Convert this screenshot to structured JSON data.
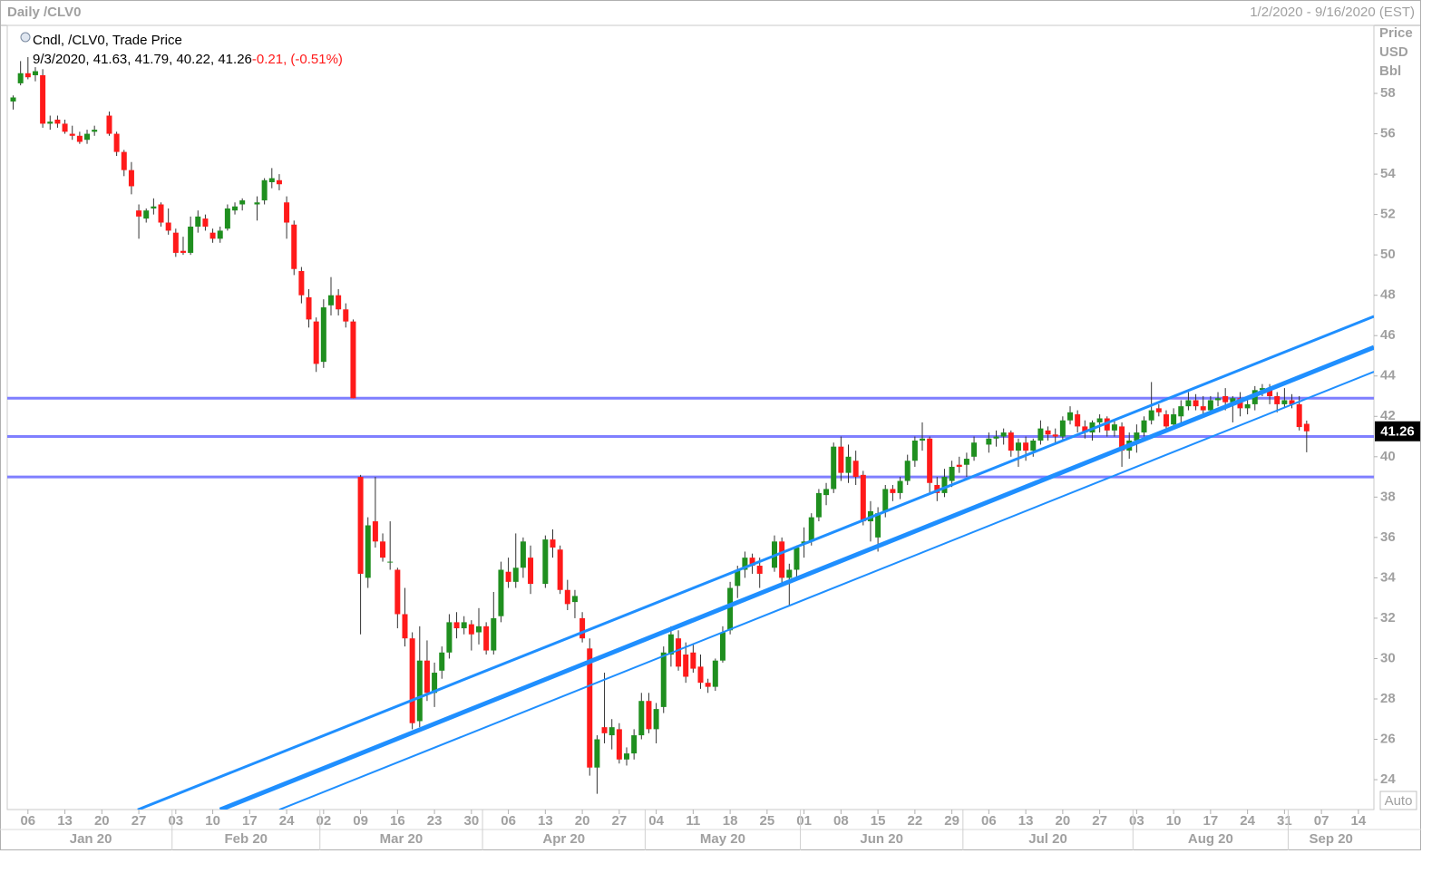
{
  "header": {
    "title": "Daily /CLV0",
    "range": "1/2/2020 - 9/16/2020 (EST)"
  },
  "legend": {
    "series": "Cndl, /CLV0, Trade Price",
    "values_line": "9/3/2020, 41.63, 41.79, 40.22, 41.26",
    "change": "-0.21, (-0.51%)"
  },
  "chart_data": {
    "type": "candlestick",
    "axis_units": [
      "Price",
      "USD",
      "Bbl"
    ],
    "auto_button": "Auto",
    "up_color": "#1f8f1f",
    "down_color": "#ff1a1a",
    "xlim": [
      -0.8,
      184.1
    ],
    "ylim": [
      22.52,
      61.37
    ],
    "yticks": [
      24,
      26,
      28,
      30,
      32,
      34,
      36,
      38,
      40,
      42,
      44,
      46,
      48,
      50,
      52,
      54,
      56,
      58
    ],
    "xticks": [
      {
        "value": 2,
        "label": "06"
      },
      {
        "value": 7,
        "label": "13"
      },
      {
        "value": 12,
        "label": "20"
      },
      {
        "value": 17,
        "label": "27"
      },
      {
        "value": 22,
        "label": "03"
      },
      {
        "value": 27,
        "label": "10"
      },
      {
        "value": 32,
        "label": "17"
      },
      {
        "value": 37,
        "label": "24"
      },
      {
        "value": 42,
        "label": "02"
      },
      {
        "value": 47,
        "label": "09"
      },
      {
        "value": 52,
        "label": "16"
      },
      {
        "value": 57,
        "label": "23"
      },
      {
        "value": 62,
        "label": "30"
      },
      {
        "value": 67,
        "label": "06"
      },
      {
        "value": 72,
        "label": "13"
      },
      {
        "value": 77,
        "label": "20"
      },
      {
        "value": 82,
        "label": "27"
      },
      {
        "value": 87,
        "label": "04"
      },
      {
        "value": 92,
        "label": "11"
      },
      {
        "value": 97,
        "label": "18"
      },
      {
        "value": 102,
        "label": "25"
      },
      {
        "value": 107,
        "label": "01"
      },
      {
        "value": 112,
        "label": "08"
      },
      {
        "value": 117,
        "label": "15"
      },
      {
        "value": 122,
        "label": "22"
      },
      {
        "value": 127,
        "label": "29"
      },
      {
        "value": 132,
        "label": "06"
      },
      {
        "value": 137,
        "label": "13"
      },
      {
        "value": 142,
        "label": "20"
      },
      {
        "value": 147,
        "label": "27"
      },
      {
        "value": 152,
        "label": "03"
      },
      {
        "value": 157,
        "label": "10"
      },
      {
        "value": 162,
        "label": "17"
      },
      {
        "value": 167,
        "label": "24"
      },
      {
        "value": 172,
        "label": "31"
      },
      {
        "value": 177,
        "label": "07"
      },
      {
        "value": 182,
        "label": "14"
      }
    ],
    "month_ticks": [
      {
        "value": -0.5,
        "label": "Jan 20"
      },
      {
        "value": 21.5,
        "label": "Feb 20"
      },
      {
        "value": 41.5,
        "label": "Mar 20"
      },
      {
        "value": 63.5,
        "label": "Apr 20"
      },
      {
        "value": 85.5,
        "label": "May 20"
      },
      {
        "value": 106.5,
        "label": "Jun 20"
      },
      {
        "value": 128.5,
        "label": "Jul 20"
      },
      {
        "value": 151.5,
        "label": "Aug 20"
      },
      {
        "value": 172.5,
        "label": "Sep 20"
      }
    ],
    "hlines": [
      42.9,
      41.0,
      39.0
    ],
    "hline_color": "#7f7fff",
    "trendlines": [
      {
        "points": [
          [
            16.85,
            22.51
          ],
          [
            184.1,
            46.95
          ]
        ],
        "width": 3,
        "color": "#1f8fff"
      },
      {
        "points": [
          [
            28.0,
            22.51
          ],
          [
            184.1,
            45.42
          ]
        ],
        "width": 5,
        "color": "#1f8fff"
      },
      {
        "points": [
          [
            36.0,
            22.51
          ],
          [
            184.1,
            44.21
          ]
        ],
        "width": 2,
        "color": "#1f8fff"
      }
    ],
    "candles": [
      [
        57.6,
        57.9,
        57.2,
        57.8
      ],
      [
        58.5,
        59.6,
        58.4,
        59.0
      ],
      [
        59.0,
        59.8,
        58.7,
        58.8
      ],
      [
        58.9,
        59.3,
        58.6,
        59.1
      ],
      [
        58.9,
        59.2,
        56.3,
        56.5
      ],
      [
        56.5,
        56.9,
        56.2,
        56.6
      ],
      [
        56.7,
        56.9,
        56.3,
        56.5
      ],
      [
        56.5,
        56.7,
        56.0,
        56.1
      ],
      [
        56.0,
        56.4,
        55.7,
        55.9
      ],
      [
        55.9,
        56.1,
        55.5,
        55.6
      ],
      [
        55.7,
        56.2,
        55.5,
        56.0
      ],
      [
        56.1,
        56.4,
        55.9,
        56.2
      ],
      null,
      [
        56.9,
        57.1,
        55.9,
        56.0
      ],
      [
        56.0,
        56.1,
        54.9,
        55.1
      ],
      [
        55.1,
        55.2,
        53.9,
        54.2
      ],
      [
        54.2,
        54.6,
        53.0,
        53.4
      ],
      [
        52.2,
        52.5,
        50.8,
        51.9
      ],
      [
        51.8,
        52.3,
        51.6,
        52.2
      ],
      [
        52.3,
        52.8,
        52.0,
        52.4
      ],
      [
        52.5,
        52.6,
        51.4,
        51.6
      ],
      [
        51.6,
        52.3,
        51.0,
        51.2
      ],
      [
        51.1,
        51.3,
        49.9,
        50.1
      ],
      [
        50.2,
        50.9,
        50.0,
        50.1
      ],
      [
        50.1,
        51.9,
        50.0,
        51.4
      ],
      [
        51.4,
        52.2,
        51.1,
        51.9
      ],
      [
        51.8,
        52.0,
        51.2,
        51.4
      ],
      [
        51.1,
        51.3,
        50.6,
        50.8
      ],
      [
        50.8,
        51.4,
        50.6,
        51.2
      ],
      [
        51.3,
        52.5,
        51.2,
        52.3
      ],
      [
        52.2,
        52.6,
        52.0,
        52.4
      ],
      [
        52.5,
        52.8,
        52.2,
        52.7
      ],
      null,
      [
        52.5,
        52.9,
        51.7,
        52.6
      ],
      [
        52.7,
        53.8,
        52.5,
        53.7
      ],
      [
        53.6,
        54.3,
        53.3,
        53.8
      ],
      [
        53.7,
        54.0,
        53.2,
        53.5
      ],
      [
        52.6,
        52.9,
        50.8,
        51.6
      ],
      [
        51.5,
        51.7,
        49.0,
        49.3
      ],
      [
        49.2,
        49.4,
        47.6,
        48.0
      ],
      [
        47.9,
        48.3,
        46.4,
        46.8
      ],
      [
        46.7,
        46.9,
        44.2,
        44.6
      ],
      [
        44.7,
        47.8,
        44.4,
        47.4
      ],
      [
        47.5,
        48.9,
        47.0,
        48.0
      ],
      [
        48.0,
        48.3,
        47.0,
        47.3
      ],
      [
        47.3,
        47.6,
        46.4,
        46.7
      ],
      [
        46.7,
        46.8,
        42.9,
        42.9
      ],
      [
        39.0,
        39.1,
        31.2,
        34.2
      ],
      [
        34.0,
        37.0,
        33.5,
        36.6
      ],
      [
        36.8,
        39.0,
        35.5,
        35.8
      ],
      [
        35.8,
        36.2,
        34.8,
        35.0
      ],
      [
        34.8,
        36.8,
        34.4,
        34.8
      ],
      [
        34.4,
        34.5,
        31.5,
        32.2
      ],
      [
        32.2,
        33.5,
        30.6,
        31.0
      ],
      [
        31.0,
        31.3,
        26.5,
        26.8
      ],
      [
        26.9,
        31.6,
        26.6,
        29.9
      ],
      [
        29.9,
        30.9,
        27.9,
        28.3
      ],
      [
        28.3,
        29.8,
        27.6,
        29.3
      ],
      [
        29.4,
        30.6,
        29.0,
        30.3
      ],
      [
        30.3,
        32.2,
        30.0,
        31.8
      ],
      [
        31.8,
        32.3,
        31.0,
        31.5
      ],
      [
        31.5,
        32.1,
        31.2,
        31.8
      ],
      [
        31.7,
        31.9,
        30.4,
        31.2
      ],
      [
        31.3,
        32.5,
        30.7,
        31.6
      ],
      [
        31.6,
        31.8,
        30.2,
        30.4
      ],
      [
        30.4,
        33.3,
        30.2,
        32.0
      ],
      [
        32.1,
        34.8,
        31.8,
        34.4
      ],
      [
        34.3,
        35.0,
        33.5,
        33.8
      ],
      [
        33.8,
        36.2,
        33.5,
        34.5
      ],
      [
        34.5,
        36.0,
        34.0,
        35.8
      ],
      [
        35.0,
        35.6,
        33.2,
        33.7
      ],
      null,
      [
        33.7,
        36.1,
        33.5,
        35.9
      ],
      [
        35.9,
        36.4,
        35.0,
        35.5
      ],
      [
        35.4,
        35.6,
        33.2,
        33.4
      ],
      [
        33.4,
        33.9,
        32.4,
        32.7
      ],
      [
        32.8,
        33.4,
        32.0,
        33.1
      ],
      [
        32.0,
        32.3,
        30.8,
        31.0
      ],
      [
        30.5,
        31.0,
        24.2,
        24.6
      ],
      [
        24.6,
        26.2,
        23.3,
        26.0
      ],
      [
        26.6,
        29.3,
        25.8,
        26.3
      ],
      [
        26.2,
        27.0,
        25.5,
        26.6
      ],
      [
        26.5,
        26.8,
        24.8,
        25.0
      ],
      [
        25.0,
        25.6,
        24.7,
        25.3
      ],
      [
        25.3,
        26.5,
        25.0,
        26.2
      ],
      [
        26.2,
        28.3,
        26.0,
        27.9
      ],
      [
        27.9,
        28.3,
        26.3,
        26.5
      ],
      [
        26.5,
        27.8,
        25.8,
        27.5
      ],
      [
        27.6,
        30.6,
        27.3,
        30.3
      ],
      [
        30.2,
        31.6,
        29.6,
        31.2
      ],
      [
        31.0,
        31.4,
        29.4,
        29.6
      ],
      [
        30.2,
        30.8,
        28.8,
        29.1
      ],
      [
        30.3,
        30.7,
        29.3,
        29.5
      ],
      [
        29.6,
        30.2,
        28.5,
        28.8
      ],
      [
        28.8,
        29.0,
        28.3,
        28.6
      ],
      [
        28.6,
        30.0,
        28.4,
        29.9
      ],
      [
        29.9,
        31.6,
        29.8,
        31.3
      ],
      [
        31.4,
        33.8,
        31.2,
        33.5
      ],
      [
        33.6,
        34.6,
        33.0,
        34.4
      ],
      [
        34.4,
        35.3,
        34.0,
        35.0
      ],
      [
        35.0,
        35.2,
        34.2,
        34.6
      ],
      [
        34.6,
        35.0,
        33.5,
        34.2
      ],
      null,
      [
        34.5,
        36.1,
        34.3,
        35.8
      ],
      [
        35.8,
        36.0,
        33.7,
        34.0
      ],
      [
        34.0,
        34.7,
        32.6,
        34.4
      ],
      [
        34.4,
        35.6,
        34.0,
        35.5
      ],
      [
        35.7,
        36.5,
        35.0,
        35.8
      ],
      [
        35.8,
        37.2,
        35.6,
        37.0
      ],
      [
        37.0,
        38.4,
        36.8,
        38.2
      ],
      [
        38.1,
        38.7,
        37.6,
        38.4
      ],
      [
        38.4,
        40.7,
        38.2,
        40.5
      ],
      [
        40.5,
        41.0,
        38.8,
        39.2
      ],
      [
        39.2,
        40.6,
        38.7,
        40.0
      ],
      [
        39.8,
        40.3,
        38.6,
        39.0
      ],
      [
        39.1,
        39.3,
        36.6,
        36.8
      ],
      [
        36.8,
        37.8,
        35.8,
        37.3
      ],
      [
        36.0,
        37.5,
        35.3,
        37.2
      ],
      [
        37.3,
        38.6,
        37.0,
        38.4
      ],
      [
        38.4,
        38.6,
        37.8,
        38.2
      ],
      [
        38.2,
        39.0,
        37.9,
        38.8
      ],
      [
        38.8,
        40.1,
        38.6,
        39.8
      ],
      [
        39.8,
        41.0,
        39.5,
        40.8
      ],
      [
        40.8,
        41.7,
        40.3,
        40.9
      ],
      [
        40.9,
        41.0,
        38.2,
        38.7
      ],
      [
        38.6,
        39.0,
        37.8,
        38.2
      ],
      [
        38.2,
        39.4,
        38.0,
        39.0
      ],
      [
        38.8,
        39.8,
        38.5,
        39.5
      ],
      [
        39.6,
        40.0,
        39.2,
        39.5
      ],
      [
        39.6,
        40.2,
        39.0,
        39.9
      ],
      [
        40.0,
        41.0,
        39.8,
        40.7
      ],
      null,
      [
        40.6,
        41.2,
        40.2,
        40.9
      ],
      [
        40.9,
        41.3,
        40.5,
        41.0
      ],
      [
        41.0,
        41.4,
        40.6,
        41.2
      ],
      [
        41.2,
        41.3,
        40.0,
        40.3
      ],
      [
        40.3,
        40.9,
        39.5,
        40.7
      ],
      [
        40.7,
        41.0,
        39.8,
        40.3
      ],
      [
        40.3,
        40.9,
        40.0,
        40.8
      ],
      [
        40.8,
        41.8,
        40.6,
        41.4
      ],
      [
        41.3,
        41.5,
        40.8,
        41.1
      ],
      [
        41.1,
        41.4,
        40.6,
        41.0
      ],
      [
        41.0,
        42.0,
        40.8,
        41.8
      ],
      [
        41.8,
        42.5,
        41.6,
        42.2
      ],
      [
        42.1,
        42.3,
        41.2,
        41.5
      ],
      [
        41.5,
        41.8,
        40.9,
        41.2
      ],
      [
        41.2,
        41.8,
        40.8,
        41.7
      ],
      [
        41.7,
        42.1,
        41.2,
        41.9
      ],
      [
        41.9,
        42.0,
        41.0,
        41.3
      ],
      [
        41.3,
        41.8,
        41.0,
        41.6
      ],
      [
        41.5,
        41.7,
        39.5,
        40.3
      ],
      [
        40.3,
        41.2,
        39.9,
        40.8
      ],
      [
        40.8,
        41.6,
        40.2,
        41.2
      ],
      [
        41.2,
        42.0,
        41.0,
        41.8
      ],
      [
        41.8,
        43.7,
        41.6,
        42.3
      ],
      [
        42.4,
        42.6,
        42.0,
        42.2
      ],
      [
        42.1,
        42.3,
        41.2,
        41.5
      ],
      [
        41.6,
        42.4,
        41.4,
        42.1
      ],
      [
        42.0,
        42.8,
        41.7,
        42.5
      ],
      [
        42.5,
        43.2,
        42.3,
        42.8
      ],
      [
        42.8,
        43.1,
        42.3,
        42.5
      ],
      [
        42.5,
        43.0,
        42.0,
        42.3
      ],
      [
        42.3,
        43.0,
        42.1,
        42.8
      ],
      [
        42.8,
        43.2,
        42.5,
        42.9
      ],
      [
        43.0,
        43.4,
        42.3,
        42.7
      ],
      [
        42.7,
        43.0,
        41.7,
        42.9
      ],
      [
        42.9,
        43.2,
        42.0,
        42.4
      ],
      [
        42.4,
        42.8,
        42.1,
        42.6
      ],
      [
        42.6,
        43.5,
        42.3,
        43.3
      ],
      [
        43.3,
        43.6,
        43.0,
        43.4
      ],
      [
        43.4,
        43.6,
        42.6,
        43.0
      ],
      [
        43.0,
        43.2,
        42.2,
        42.6
      ],
      [
        42.6,
        43.4,
        42.4,
        42.8
      ],
      [
        42.8,
        43.1,
        42.4,
        42.6
      ],
      [
        42.6,
        43.0,
        41.3,
        41.47
      ],
      [
        41.63,
        41.79,
        40.22,
        41.26
      ]
    ]
  }
}
